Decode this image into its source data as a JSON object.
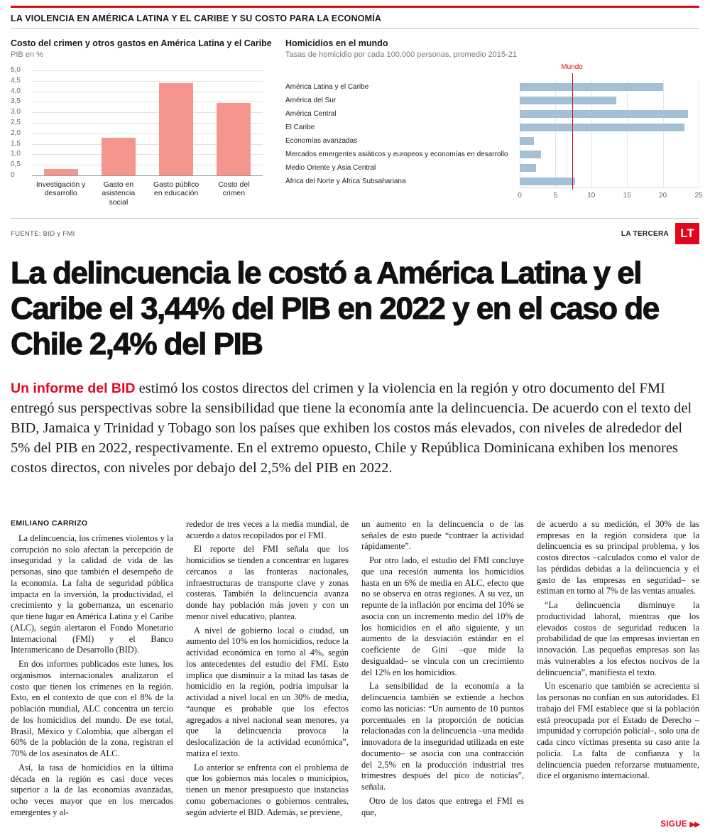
{
  "accent_color": "#e3051b",
  "kicker": "LA VIOLENCIA EN AMÉRICA LATINA Y EL CARIBE Y SU COSTO PARA LA ECONOMÍA",
  "chart_data": [
    {
      "type": "bar",
      "title": "Costo del crimen y otros gastos en América Latina y el Caribe",
      "subtitle": "PIB en %",
      "categories": [
        "Investigación y desarrollo",
        "Gasto en asistencia social",
        "Gasto público en educación",
        "Costo del crimen"
      ],
      "values": [
        0.3,
        1.8,
        4.4,
        3.44
      ],
      "ylim": [
        0,
        5
      ],
      "yticks": [
        {
          "v": 5,
          "l": "5,0"
        },
        {
          "v": 4.5,
          "l": "4,5"
        },
        {
          "v": 4,
          "l": "4,0"
        },
        {
          "v": 3.5,
          "l": "3,5"
        },
        {
          "v": 3,
          "l": "3,0"
        },
        {
          "v": 2.5,
          "l": "2,5"
        },
        {
          "v": 2,
          "l": "2,0"
        },
        {
          "v": 1.5,
          "l": "1,5"
        },
        {
          "v": 1,
          "l": "1,0"
        },
        {
          "v": 0.5,
          "l": "0,5"
        },
        {
          "v": 0,
          "l": "0"
        }
      ],
      "bar_color": "#f5968e",
      "grid": true,
      "legend": "none"
    },
    {
      "type": "bar",
      "orientation": "horizontal",
      "title": "Homicidios en el mundo",
      "subtitle": "Tasas de homicidio por cada 100,000 personas, promedio 2015-21",
      "categories": [
        "América Latina y el Caribe",
        "América del Sur",
        "América Central",
        "El Caribe",
        "Economías avanzadas",
        "Mercados emergentes asiáticos y europeos y economías en desarrollo",
        "Medio Oriente y Asia Central",
        "África del Norte y África Subsahariana"
      ],
      "values": [
        20,
        13.5,
        23.5,
        23,
        2,
        3,
        2.3,
        7.7
      ],
      "xlim": [
        0,
        25
      ],
      "xticks": [
        0,
        5,
        10,
        15,
        20,
        25
      ],
      "reference_line": {
        "label": "Mundo",
        "value": 7.3,
        "color": "#e3051b"
      },
      "bar_color": "#a3c0d4",
      "grid": true,
      "legend": "none"
    }
  ],
  "source": "FUENTE: BID y FMI",
  "brand": {
    "name": "LA TERCERA",
    "logo": "LT"
  },
  "headline": "La delincuencia le costó a América Latina y el Caribe el 3,44% del PIB en 2022 y en el caso de Chile 2,4% del PIB",
  "lead": {
    "intro": "Un informe del BID",
    "text": "estimó los costos directos del crimen y la violencia en la región y otro documento del FMI entregó sus perspectivas sobre la sensibilidad que tiene la economía ante la delincuencia. De acuerdo con el texto del BID, Jamaica y Trinidad y Tobago son los países que exhiben los costos más elevados, con niveles de alrededor del 5% del PIB en 2022, respectivamente. En el extremo opuesto, Chile y República Dominicana exhiben los menores costos directos, con niveles por debajo del 2,5% del PIB en 2022."
  },
  "article": {
    "byline": "EMILIANO CARRIZO",
    "columns": [
      {
        "paragraphs": [
          {
            "indent": true,
            "text": "La delincuencia, los crímenes violentos y la corrupción no solo afectan la percepción de inseguridad y la calidad de vida de las personas, sino que también el desempeño de la economía. La falta de seguridad pública impacta en la inversión, la productividad, el crecimiento y la gobernanza, un escenario que tiene lugar en América Latina y el Caribe (ALC), según alertaron el Fondo Monetario Internacional (FMI) y el Banco Interamericano de Desarrollo (BID)."
          },
          {
            "indent": true,
            "text": "En dos informes publicados este lunes, los organismos internacionales analizaron el costo que tienen los crímenes en la región. Esto, en el contexto de que con el 8% de la población mundial, ALC concentra un tercio de los homicidios del mundo. De ese total, Brasil, México y Colombia, que albergan el 60% de la población de la zona, registran el 70% de los asesinatos de ALC."
          },
          {
            "indent": true,
            "text": "Así, la tasa de homicidios en la última década en la región es casi doce veces superior a la de las economías avanzadas, ocho veces mayor que en los mercados emergentes y al-"
          }
        ]
      },
      {
        "paragraphs": [
          {
            "indent": false,
            "text": "rededor de tres veces a la media mundial, de acuerdo a datos recopilados por el FMI."
          },
          {
            "indent": true,
            "text": "El reporte del FMI señala que los homicidios se tienden a concentrar en lugares cercanos a las fronteras nacionales, infraestructuras de transporte clave y zonas costeras. También la delincuencia avanza donde hay población más joven y con un menor nivel educativo, plantea."
          },
          {
            "indent": true,
            "text": "A nivel de gobierno local o ciudad, un aumento del 10% en los homicidios, reduce la actividad económica en torno al 4%, según los antecedentes del estudio del FMI. Esto implica que disminuir a la mitad las tasas de homicidio en la región, podría impulsar la actividad a nivel local en un 30% de media, “aunque es probable que los efectos agregados a nivel nacional sean menores, ya que la delincuencia provoca la deslocalización de la actividad económica”, matiza el texto."
          },
          {
            "indent": true,
            "text": "Lo anterior se enfrenta con el problema de que los gobiernos más locales o municipios, tienen un menor presupuesto que instancias como gobernaciones o gobiernos centrales, según advierte el BID. Además, se previene,"
          }
        ]
      },
      {
        "paragraphs": [
          {
            "indent": false,
            "text": "un aumento en la delincuencia o de las señales de esto puede “contraer la actividad rápidamente”."
          },
          {
            "indent": true,
            "text": "Por otro lado, el estudio del FMI concluye que una recesión aumenta los homicidios hasta en un 6% de media en ALC, efecto que no se observa en otras regiones. A su vez, un repunte de la inflación por encima del 10% se asocia con un incremento medio del 10% de los homicidios en el año siguiente, y un aumento de la desviación estándar en el coeficiente de Gini –que mide la desigualdad– se vincula con un crecimiento del 12% en los homicidios."
          },
          {
            "indent": true,
            "text": "La sensibilidad de la economía a la delincuencia también se extiende a hechos como las noticias: “Un aumento de 10 puntos porcentuales en la proporción de noticias relacionadas con la delincuencia –una medida innovadora de la inseguridad utilizada en este documento– se asocia con una contracción del 2,5% en la producción industrial tres trimestres después del pico de noticias”, señala."
          },
          {
            "indent": true,
            "text": "Otro de los datos que entrega el FMI es que,"
          }
        ]
      },
      {
        "paragraphs": [
          {
            "indent": false,
            "text": "de acuerdo a su medición, el 30% de las empresas en la región considera que la delincuencia es su principal problema, y los costos directos –calculados como el valor de las pérdidas debidas a la delincuencia y el gasto de las empresas en seguridad– se estiman en torno al 7% de las ventas anuales."
          },
          {
            "indent": true,
            "text": "“La delincuencia disminuye la productividad laboral, mientras que los elevados costos de seguridad reducen la probabilidad de que las empresas inviertan en innovación. Las pequeñas empresas son las más vulnerables a los efectos nocivos de la delincuencia”, manifiesta el texto."
          },
          {
            "indent": true,
            "text": "Un escenario que también se acrecienta si las personas no confían en sus autoridades. El trabajo del FMI establece que si la población está preocupada por el Estado de Derecho –impunidad y corrupción policial–, solo una de cada cinco víctimas presenta su caso ante la policía. La falta de confianza y la delincuencia pueden reforzarse mutuamente, dice el organismo internacional."
          }
        ]
      }
    ]
  },
  "continuation": {
    "label": "SIGUE",
    "arrows": "▶▶"
  }
}
